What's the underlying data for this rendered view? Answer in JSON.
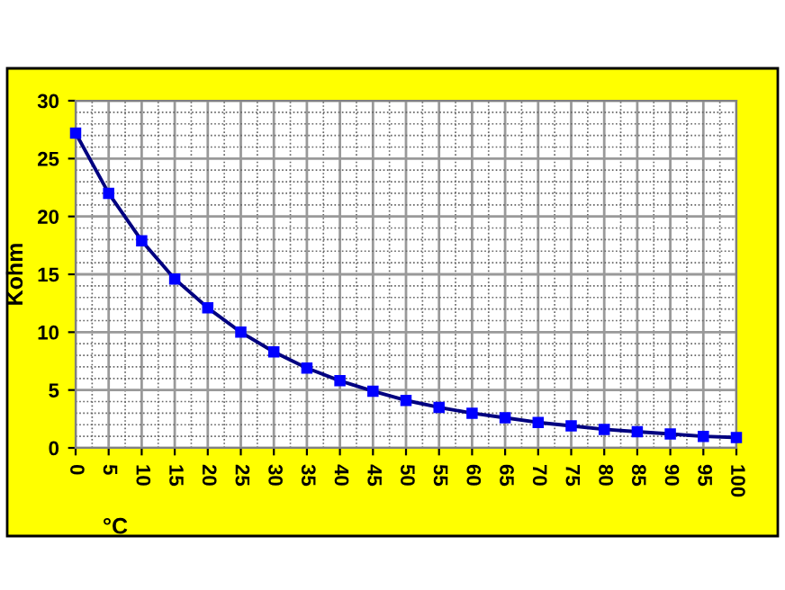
{
  "chart_data": {
    "type": "line",
    "xlabel": "°C",
    "ylabel": "Kohm",
    "x": [
      0,
      5,
      10,
      15,
      20,
      25,
      30,
      35,
      40,
      45,
      50,
      55,
      60,
      65,
      70,
      75,
      80,
      85,
      90,
      95,
      100
    ],
    "series": [
      {
        "color": "#000080",
        "values": [
          27.2,
          22.0,
          17.9,
          14.6,
          12.1,
          10.0,
          8.3,
          6.9,
          5.8,
          4.9,
          4.1,
          3.5,
          3.0,
          2.6,
          2.2,
          1.9,
          1.6,
          1.4,
          1.2,
          1.0,
          0.9
        ]
      }
    ],
    "xlim": [
      0,
      100
    ],
    "xticks": [
      0,
      5,
      10,
      15,
      20,
      25,
      30,
      35,
      40,
      45,
      50,
      55,
      60,
      65,
      70,
      75,
      80,
      85,
      90,
      95,
      100
    ],
    "ylim": [
      0,
      30
    ],
    "yticks": [
      0,
      5,
      10,
      15,
      20,
      25,
      30
    ],
    "grid": true,
    "marker": "square",
    "line_style": "solid"
  }
}
